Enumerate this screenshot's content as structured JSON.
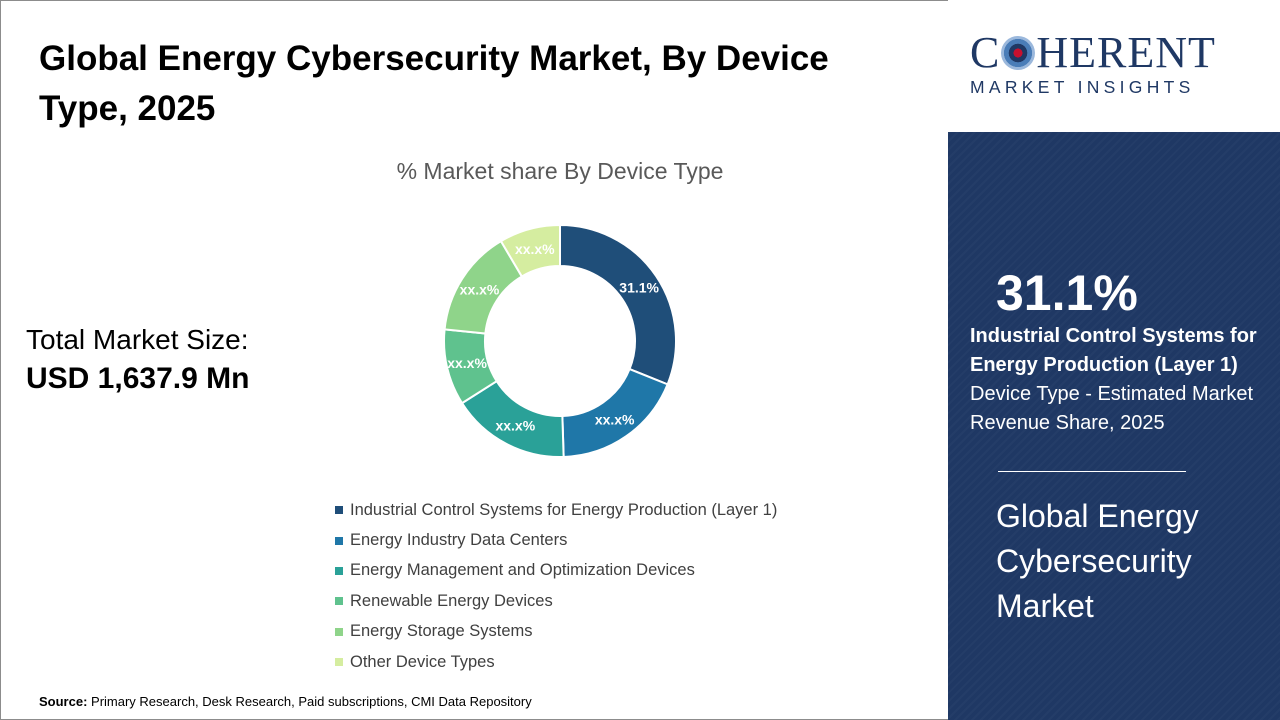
{
  "header": {
    "title": "Global Energy Cybersecurity Market, By Device Type, 2025"
  },
  "total_market": {
    "label": "Total Market Size:",
    "value": "USD 1,637.9 Mn"
  },
  "chart_data": {
    "type": "pie",
    "title": "% Market share By Device Type",
    "categories": [
      "Industrial Control Systems for Energy Production  (Layer 1)",
      "Energy Industry Data Centers",
      "Energy Management and Optimization Devices",
      "Renewable Energy Devices",
      "Energy Storage Systems",
      "Other Device Types"
    ],
    "values": [
      31.1,
      18.4,
      16.5,
      10.6,
      14.9,
      8.5
    ],
    "data_labels": [
      "31.1%",
      "xx.x%",
      "xx.x%",
      "xx.x%",
      "xx.x%",
      "xx.x%"
    ],
    "colors": [
      "#1f4e79",
      "#1f77a8",
      "#2aa198",
      "#5fc28e",
      "#8fd48a",
      "#d5eda0"
    ],
    "legend_position": "bottom",
    "style": "donut"
  },
  "source": {
    "label": "Source:",
    "text": " Primary Research, Desk Research, Paid subscriptions, CMI Data Repository"
  },
  "brand": {
    "logo_main_pre": "C",
    "logo_main_post": "HERENT",
    "logo_sub": "MARKET INSIGHTS",
    "color": "#1f3864"
  },
  "highlight": {
    "percent": "31.1%",
    "segment_bold": "Industrial Control Systems for Energy Production (Layer 1)",
    "segment_rest": " Device Type - Estimated Market Revenue Share, 2025",
    "market_name": "Global Energy Cybersecurity Market",
    "panel_color": "#1f3864"
  }
}
